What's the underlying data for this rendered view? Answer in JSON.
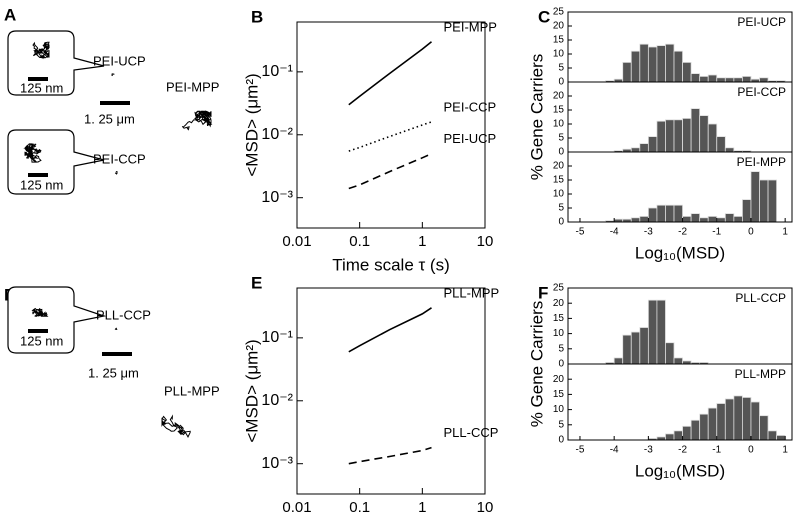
{
  "trajectory_panels": [
    {
      "label": "A",
      "texts": [
        "125 nm",
        "PEI-UCP",
        "1. 25 μm",
        "PEI-MPP",
        "125 nm",
        "PEI-CCP"
      ]
    },
    {
      "label": "D",
      "texts": [
        "125 nm",
        "PLL-CCP",
        "1. 25 μm",
        "PLL-MPP"
      ]
    }
  ],
  "chart_data": [
    {
      "type": "line",
      "panel_label": "B",
      "xlabel": "Time scale τ (s)",
      "ylabel": "<MSD> (μm²)",
      "log_x": true,
      "log_y": true,
      "xlim": [
        0.01,
        10
      ],
      "xticks": [
        0.01,
        0.1,
        1,
        10
      ],
      "ylim": [
        0.00033,
        0.62
      ],
      "yticks": [
        {
          "value": 0.001,
          "label": "10⁻³"
        },
        {
          "value": 0.01,
          "label": "10⁻²"
        },
        {
          "value": 0.1,
          "label": "10⁻¹"
        }
      ],
      "x": [
        0.067,
        0.1,
        0.3,
        1,
        1.4
      ],
      "series": [
        {
          "name": "PEI-MPP",
          "color": "#000000",
          "style": "solid",
          "values": [
            0.03,
            0.041,
            0.094,
            0.23,
            0.3
          ]
        },
        {
          "name": "PEI-CCP",
          "color": "#000000",
          "style": "dotted",
          "values": [
            0.0055,
            0.0063,
            0.0094,
            0.0143,
            0.016
          ]
        },
        {
          "name": "PEI-UCP",
          "color": "#000000",
          "style": "dashed",
          "values": [
            0.0014,
            0.0016,
            0.0026,
            0.0043,
            0.005
          ]
        }
      ]
    },
    {
      "type": "histogram",
      "panel_label": "C",
      "xlabel": "Log₁₀(MSD)",
      "ylabel": "% Gene Carriers",
      "bins": [
        -4.5,
        -4.25,
        -4,
        -3.75,
        -3.5,
        -3.25,
        -3,
        -2.75,
        -2.5,
        -2.25,
        -2,
        -1.75,
        -1.5,
        -1.25,
        -1,
        -0.75,
        -0.5,
        -0.25,
        0,
        0.25,
        0.5,
        0.75,
        1
      ],
      "xlim": [
        -5.35,
        1.2
      ],
      "xticks": [
        -5,
        -4,
        -3,
        -2,
        -1,
        0,
        1
      ],
      "ylim": [
        0,
        25
      ],
      "series": [
        {
          "name": "PEI-UCP",
          "color": "#555555",
          "yticks": [
            0,
            5,
            10,
            15,
            20,
            25
          ],
          "values": [
            0,
            0.5,
            1,
            7,
            11,
            13.5,
            12.5,
            13,
            13.5,
            11,
            7,
            3,
            2,
            2.5,
            1.5,
            1.5,
            1.5,
            2,
            1,
            1.5,
            0.5,
            0.5
          ]
        },
        {
          "name": "PEI-CCP",
          "color": "#555555",
          "yticks": [
            0,
            5,
            10,
            15,
            20
          ],
          "values": [
            0,
            0,
            0.5,
            1,
            1.5,
            3,
            5.5,
            11,
            11.5,
            11.5,
            12,
            15.5,
            13,
            10,
            5.5,
            1.5,
            0.5,
            0.5,
            0,
            0,
            0,
            0
          ]
        },
        {
          "name": "PEI-MPP",
          "color": "#555555",
          "yticks": [
            0,
            5,
            10,
            15,
            20
          ],
          "values": [
            0,
            0.5,
            1,
            1,
            1.5,
            2,
            5,
            6,
            6,
            6,
            2,
            3,
            1.5,
            2,
            1.5,
            3,
            2,
            8,
            18,
            15,
            15,
            0
          ]
        }
      ]
    },
    {
      "type": "line",
      "panel_label": "E",
      "xlabel": "Time scale τ (s)",
      "ylabel": "<MSD> (μm²)",
      "log_x": true,
      "log_y": true,
      "xlim": [
        0.01,
        10
      ],
      "xticks": [
        0.01,
        0.1,
        1,
        10
      ],
      "ylim": [
        0.00033,
        0.62
      ],
      "yticks": [
        {
          "value": 0.001,
          "label": "10⁻³"
        },
        {
          "value": 0.01,
          "label": "10⁻²"
        },
        {
          "value": 0.1,
          "label": "10⁻¹"
        }
      ],
      "x": [
        0.067,
        0.1,
        0.3,
        1,
        1.4
      ],
      "series": [
        {
          "name": "PLL-MPP",
          "color": "#000000",
          "style": "solid",
          "values": [
            0.06,
            0.075,
            0.135,
            0.24,
            0.3
          ]
        },
        {
          "name": "PLL-CCP",
          "color": "#000000",
          "style": "dashed",
          "values": [
            0.001,
            0.00108,
            0.0013,
            0.00162,
            0.0018
          ]
        }
      ]
    },
    {
      "type": "histogram",
      "panel_label": "F",
      "xlabel": "Log₁₀(MSD)",
      "ylabel": "% Gene Carriers",
      "bins": [
        -4.5,
        -4.25,
        -4,
        -3.75,
        -3.5,
        -3.25,
        -3,
        -2.75,
        -2.5,
        -2.25,
        -2,
        -1.75,
        -1.5,
        -1.25,
        -1,
        -0.75,
        -0.5,
        -0.25,
        0,
        0.25,
        0.5,
        0.75,
        1
      ],
      "xlim": [
        -5.35,
        1.2
      ],
      "xticks": [
        -5,
        -4,
        -3,
        -2,
        -1,
        0,
        1
      ],
      "ylim": [
        0,
        25
      ],
      "series": [
        {
          "name": "PLL-CCP",
          "color": "#555555",
          "yticks": [
            0,
            5,
            10,
            15,
            20,
            25
          ],
          "values": [
            0,
            0.5,
            2,
            9.5,
            10.5,
            12,
            21,
            21,
            7,
            2,
            1,
            0.5,
            0.5,
            0,
            0,
            0,
            0,
            0,
            0,
            0,
            0,
            0
          ]
        },
        {
          "name": "PLL-MPP",
          "color": "#555555",
          "yticks": [
            0,
            5,
            10,
            15,
            20
          ],
          "values": [
            0,
            0,
            0,
            0,
            0,
            0,
            0.5,
            1,
            2,
            3,
            4.5,
            6.5,
            8.5,
            10.5,
            12,
            13.5,
            14.5,
            14,
            12.5,
            8,
            3,
            1.5
          ]
        }
      ]
    }
  ]
}
